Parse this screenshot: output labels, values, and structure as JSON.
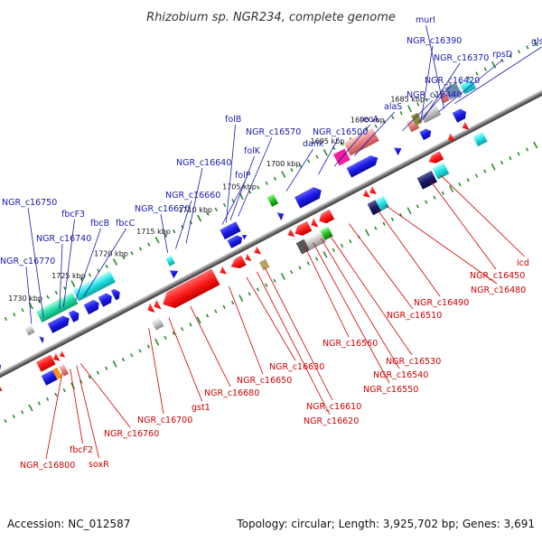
{
  "title": "Rhizobium sp. NGR234, complete genome",
  "footer": {
    "accession": "Accession: NC_012587",
    "topology": "Topology: circular; Length: 3,925,702 bp; Genes: 3,691"
  },
  "colors": {
    "plus_label": "#1a1aaa",
    "minus_label": "#cc0000",
    "tick": "#2a8a2a",
    "axis": "#888888"
  },
  "kbp_marks": [
    {
      "label": "1685 kbp",
      "t": 540
    },
    {
      "label": "1690 kbp",
      "t": 490
    },
    {
      "label": "1695 kbp",
      "t": 440
    },
    {
      "label": "1700 kbp",
      "t": 385
    },
    {
      "label": "1705 kbp",
      "t": 330
    },
    {
      "label": "1710 kbp",
      "t": 275
    },
    {
      "label": "1715 kbp",
      "t": 223
    },
    {
      "label": "1720 kbp",
      "t": 170
    },
    {
      "label": "1725 kbp",
      "t": 117
    },
    {
      "label": "1730 kbp",
      "t": 63
    }
  ],
  "plus_labels": [
    {
      "text": "murI",
      "t": 572
    },
    {
      "text": "glsA",
      "t": 585
    },
    {
      "text": "NGR_c16390",
      "t": 543
    },
    {
      "text": "NGR_c16370",
      "t": 545
    },
    {
      "text": "rpsD",
      "t": 565
    },
    {
      "text": "NGR_c16420",
      "t": 540
    },
    {
      "text": "NGR_c16440",
      "t": 520
    },
    {
      "text": "alaS",
      "t": 460
    },
    {
      "text": "recA",
      "t": 435
    },
    {
      "text": "NGR_c16500",
      "t": 415
    },
    {
      "text": "dank",
      "t": 375
    },
    {
      "text": "folB",
      "t": 300
    },
    {
      "text": "NGR_c16570",
      "t": 315
    },
    {
      "text": "folK",
      "t": 305
    },
    {
      "text": "folP",
      "t": 295
    },
    {
      "text": "NGR_c16640",
      "t": 250
    },
    {
      "text": "NGR_c16660",
      "t": 237
    },
    {
      "text": "NGR_c16670",
      "t": 227
    },
    {
      "text": "fbcC",
      "t": 122
    },
    {
      "text": "fbcB",
      "t": 112
    },
    {
      "text": "fbcF3",
      "t": 97
    },
    {
      "text": "NGR_c16740",
      "t": 92
    },
    {
      "text": "NGR_c16750",
      "t": 72
    },
    {
      "text": "NGR_c16770",
      "t": 57
    }
  ],
  "minus_labels": [
    {
      "text": "icd",
      "t": 535
    },
    {
      "text": "NGR_c16450",
      "t": 522
    },
    {
      "text": "NGR_c16480",
      "t": 465
    },
    {
      "text": "NGR_c16490",
      "t": 455
    },
    {
      "text": "NGR_c16510",
      "t": 420
    },
    {
      "text": "NGR_c16530",
      "t": 395
    },
    {
      "text": "NGR_c16540",
      "t": 385
    },
    {
      "text": "NGR_c16550",
      "t": 375
    },
    {
      "text": "NGR_c16560",
      "t": 365
    },
    {
      "text": "NGR_c16610",
      "t": 315
    },
    {
      "text": "NGR_c16620",
      "t": 305
    },
    {
      "text": "NGR_c16630",
      "t": 292
    },
    {
      "text": "NGR_c16650",
      "t": 270
    },
    {
      "text": "NGR_c16680",
      "t": 222
    },
    {
      "text": "gst1",
      "t": 195
    },
    {
      "text": "NGR_c16700",
      "t": 170
    },
    {
      "text": "NGR_c16760",
      "t": 85
    },
    {
      "text": "soxR",
      "t": 80
    },
    {
      "text": "fbcF2",
      "t": 72
    },
    {
      "text": "NGR_c16800",
      "t": 62
    }
  ]
}
